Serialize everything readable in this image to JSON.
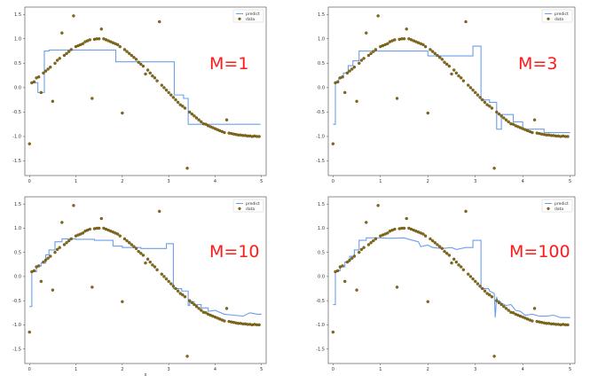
{
  "chart_data": [
    {
      "type": "line",
      "annotation": "M=1",
      "xlabel": "",
      "legend": [
        "predict",
        "data"
      ],
      "legend_position": "top-right",
      "xlim": [
        -0.1,
        5.1
      ],
      "ylim": [
        -1.8,
        1.65
      ],
      "xticks": [
        0,
        1,
        2,
        3,
        4,
        5
      ],
      "yticks": [
        -1.5,
        -1.0,
        -0.5,
        0.0,
        0.5,
        1.0,
        1.5
      ],
      "predict": {
        "x": [
          0.02,
          0.18,
          0.18,
          0.32,
          0.32,
          0.42,
          0.42,
          1.86,
          1.86,
          3.12,
          3.12,
          3.32,
          3.32,
          3.42,
          3.42,
          4.98
        ],
        "y": [
          0.1,
          0.1,
          -0.1,
          -0.1,
          0.75,
          0.75,
          0.77,
          0.77,
          0.53,
          0.53,
          -0.15,
          -0.15,
          -0.22,
          -0.22,
          -0.75,
          -0.75
        ]
      }
    },
    {
      "type": "line",
      "annotation": "M=3",
      "xlabel": "",
      "legend": [
        "predict",
        "data"
      ],
      "legend_position": "top-right",
      "xlim": [
        -0.1,
        5.1
      ],
      "ylim": [
        -1.8,
        1.65
      ],
      "xticks": [
        0,
        1,
        2,
        3,
        4,
        5
      ],
      "yticks": [
        -1.5,
        -1.0,
        -0.5,
        0.0,
        0.5,
        1.0,
        1.5
      ],
      "predict": {
        "x": [
          0.0,
          0.05,
          0.05,
          0.12,
          0.12,
          0.22,
          0.22,
          0.32,
          0.32,
          0.42,
          0.42,
          0.55,
          0.55,
          2.0,
          2.0,
          2.95,
          2.95,
          3.12,
          3.12,
          3.3,
          3.3,
          3.45,
          3.45,
          3.55,
          3.55,
          3.8,
          3.8,
          4.0,
          4.0,
          4.45,
          4.45,
          5.0
        ],
        "y": [
          -0.75,
          -0.75,
          0.1,
          0.1,
          0.2,
          0.2,
          0.3,
          0.3,
          0.45,
          0.45,
          0.55,
          0.55,
          0.75,
          0.75,
          0.65,
          0.65,
          0.85,
          0.85,
          -0.25,
          -0.25,
          -0.3,
          -0.3,
          -0.85,
          -0.85,
          -0.55,
          -0.55,
          -0.7,
          -0.7,
          -0.85,
          -0.85,
          -0.92,
          -0.92
        ]
      }
    },
    {
      "type": "line",
      "annotation": "M=10",
      "xlabel": "x",
      "legend": [
        "predict",
        "data"
      ],
      "legend_position": "top-right",
      "xlim": [
        -0.1,
        5.1
      ],
      "ylim": [
        -1.8,
        1.65
      ],
      "xticks": [
        0,
        1,
        2,
        3,
        4,
        5
      ],
      "yticks": [
        -1.5,
        -1.0,
        -0.5,
        0.0,
        0.5,
        1.0,
        1.5
      ],
      "predict": {
        "x": [
          0.0,
          0.05,
          0.05,
          0.15,
          0.15,
          0.25,
          0.25,
          0.35,
          0.35,
          0.42,
          0.42,
          0.55,
          0.55,
          0.7,
          0.7,
          1.0,
          1.0,
          1.4,
          1.4,
          1.8,
          1.8,
          2.0,
          2.0,
          2.4,
          2.4,
          2.95,
          2.95,
          3.1,
          3.1,
          3.28,
          3.28,
          3.42,
          3.42,
          3.45,
          3.45,
          3.55,
          3.55,
          3.7,
          3.7,
          3.85,
          3.85,
          4.0,
          4.2,
          4.4,
          4.6,
          4.75,
          4.9,
          5.0
        ],
        "y": [
          -0.62,
          -0.62,
          0.1,
          0.1,
          0.22,
          0.22,
          0.28,
          0.28,
          0.45,
          0.45,
          0.55,
          0.55,
          0.72,
          0.72,
          0.78,
          0.78,
          0.77,
          0.77,
          0.75,
          0.75,
          0.63,
          0.63,
          0.6,
          0.6,
          0.58,
          0.58,
          0.68,
          0.68,
          -0.25,
          -0.25,
          -0.3,
          -0.3,
          -0.6,
          -0.6,
          -0.52,
          -0.52,
          -0.58,
          -0.58,
          -0.65,
          -0.65,
          -0.72,
          -0.7,
          -0.78,
          -0.8,
          -0.82,
          -0.75,
          -0.78,
          -0.78
        ]
      }
    },
    {
      "type": "line",
      "annotation": "M=100",
      "xlabel": "",
      "legend": [
        "predict",
        "data"
      ],
      "legend_position": "top-right",
      "xlim": [
        -0.1,
        5.1
      ],
      "ylim": [
        -1.8,
        1.65
      ],
      "xticks": [
        0,
        1,
        2,
        3,
        4,
        5
      ],
      "yticks": [
        -1.5,
        -1.0,
        -0.5,
        0.0,
        0.5,
        1.0,
        1.5
      ],
      "predict": {
        "x": [
          0.0,
          0.05,
          0.05,
          0.15,
          0.15,
          0.25,
          0.25,
          0.35,
          0.35,
          0.45,
          0.45,
          0.55,
          0.55,
          0.7,
          0.7,
          1.0,
          1.2,
          1.5,
          1.6,
          1.8,
          1.85,
          2.0,
          2.1,
          2.3,
          2.5,
          2.6,
          2.8,
          2.95,
          2.95,
          3.12,
          3.12,
          3.28,
          3.3,
          3.4,
          3.42,
          3.45,
          3.48,
          3.5,
          3.55,
          3.65,
          3.75,
          3.85,
          3.95,
          4.05,
          4.2,
          4.35,
          4.5,
          4.65,
          4.8,
          5.0
        ],
        "y": [
          -0.58,
          -0.58,
          0.12,
          0.12,
          0.2,
          0.2,
          0.3,
          0.3,
          0.42,
          0.42,
          0.55,
          0.55,
          0.75,
          0.75,
          0.8,
          0.8,
          0.79,
          0.8,
          0.77,
          0.72,
          0.62,
          0.65,
          0.6,
          0.58,
          0.6,
          0.56,
          0.6,
          0.6,
          0.75,
          0.75,
          -0.25,
          -0.25,
          -0.3,
          -0.35,
          -0.85,
          -0.42,
          -0.55,
          -0.5,
          -0.55,
          -0.6,
          -0.58,
          -0.7,
          -0.72,
          -0.8,
          -0.78,
          -0.82,
          -0.82,
          -0.8,
          -0.85,
          -0.85
        ]
      }
    }
  ],
  "data_points": {
    "x": [
      0.0,
      0.05,
      0.1,
      0.15,
      0.2,
      0.25,
      0.3,
      0.35,
      0.4,
      0.45,
      0.5,
      0.55,
      0.6,
      0.65,
      0.7,
      0.75,
      0.8,
      0.85,
      0.9,
      0.95,
      1.0,
      1.05,
      1.1,
      1.15,
      1.2,
      1.25,
      1.3,
      1.35,
      1.4,
      1.45,
      1.5,
      1.55,
      1.6,
      1.65,
      1.7,
      1.75,
      1.8,
      1.85,
      1.9,
      1.95,
      2.0,
      2.05,
      2.1,
      2.15,
      2.2,
      2.25,
      2.3,
      2.35,
      2.4,
      2.45,
      2.5,
      2.55,
      2.6,
      2.65,
      2.7,
      2.75,
      2.8,
      2.85,
      2.9,
      2.95,
      3.0,
      3.05,
      3.1,
      3.15,
      3.2,
      3.25,
      3.3,
      3.35,
      3.4,
      3.45,
      3.5,
      3.55,
      3.6,
      3.65,
      3.7,
      3.75,
      3.8,
      3.85,
      3.9,
      3.95,
      4.0,
      4.05,
      4.1,
      4.15,
      4.2,
      4.25,
      4.3,
      4.35,
      4.4,
      4.45,
      4.5,
      4.55,
      4.6,
      4.65,
      4.7,
      4.75,
      4.8,
      4.85,
      4.9,
      4.95
    ],
    "y": [
      -1.15,
      0.1,
      0.12,
      0.2,
      0.22,
      -0.1,
      0.3,
      0.34,
      0.38,
      0.42,
      -0.28,
      0.5,
      0.56,
      0.6,
      1.12,
      0.66,
      0.7,
      0.74,
      0.78,
      1.47,
      0.84,
      0.86,
      0.88,
      0.9,
      0.94,
      0.96,
      0.98,
      -0.22,
      0.99,
      1.0,
      1.0,
      1.2,
      1.0,
      0.98,
      0.96,
      0.94,
      0.92,
      0.9,
      0.88,
      0.84,
      -0.52,
      0.78,
      0.74,
      0.7,
      0.66,
      0.62,
      0.58,
      0.52,
      0.48,
      0.44,
      0.28,
      0.36,
      0.3,
      0.24,
      0.2,
      0.14,
      1.35,
      0.05,
      0.0,
      -0.05,
      -0.1,
      -0.15,
      -0.2,
      -0.25,
      -0.3,
      -0.35,
      -0.38,
      -0.42,
      -1.65,
      -0.5,
      -0.54,
      -0.58,
      -0.62,
      -0.66,
      -0.7,
      -0.74,
      -0.75,
      -0.78,
      -0.8,
      -0.82,
      -0.84,
      -0.86,
      -0.88,
      -0.9,
      -0.92,
      -0.66,
      -0.93,
      -0.94,
      -0.95,
      -0.96,
      -0.97,
      -0.97,
      -0.98,
      -0.98,
      -0.99,
      -0.99,
      -1.0,
      -0.99,
      -1.0,
      -1.0
    ]
  },
  "colors": {
    "predict_line": "#6d9eeb",
    "data_fill": "#8a6d12",
    "data_edge": "#4a3a08",
    "annotation": "#ff1a1a",
    "axis": "#444444"
  }
}
